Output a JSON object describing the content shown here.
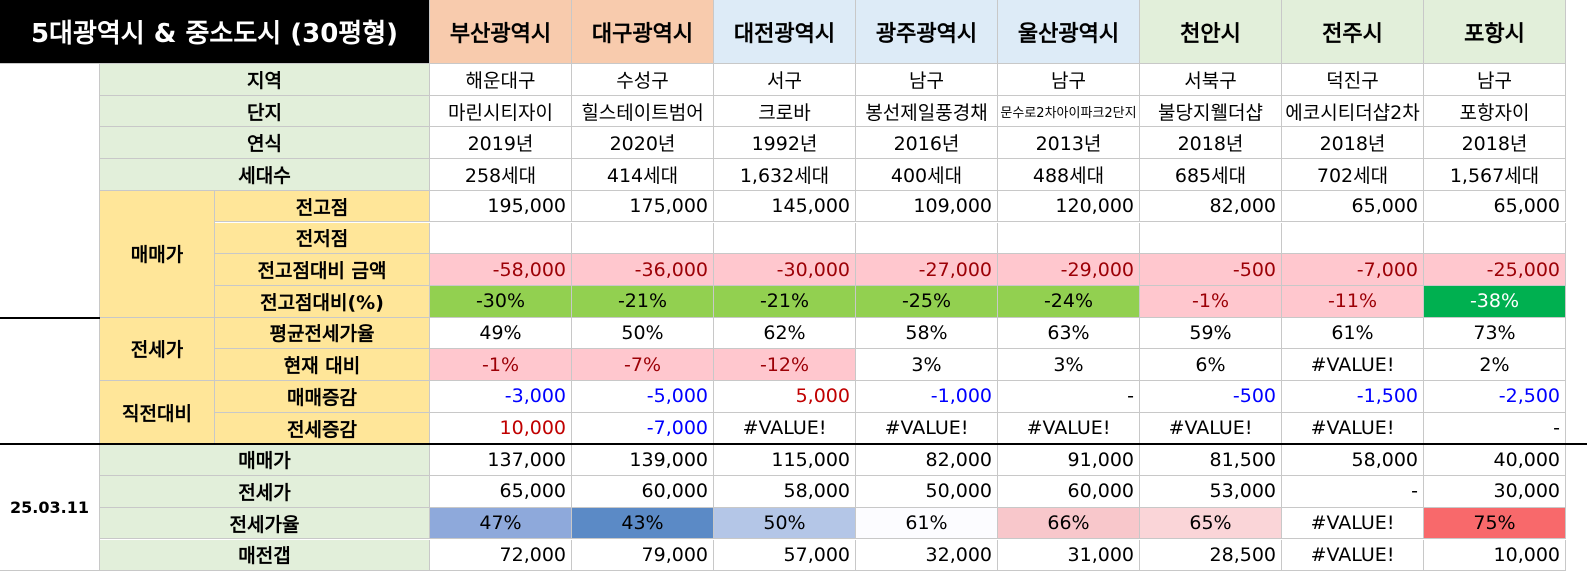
{
  "header": {
    "title": "5대광역시 & 중소도시 (30평형)",
    "cities": [
      "부산광역시",
      "대구광역시",
      "대전광역시",
      "광주광역시",
      "울산광역시",
      "천안시",
      "전주시",
      "포항시"
    ]
  },
  "groups": [
    "매매가",
    "전세가",
    "직전대비"
  ],
  "date": "25.03.11",
  "rows": [
    {
      "label": "지역",
      "values": [
        "해운대구",
        "수성구",
        "서구",
        "남구",
        "남구",
        "서북구",
        "덕진구",
        "남구"
      ]
    },
    {
      "label": "단지",
      "values": [
        "마린시티자이",
        "힐스테이트범어",
        "크로바",
        "봉선제일풍경채",
        "문수로2차아이파크2단지",
        "불당지웰더샵",
        "에코시티더샵2차",
        "포항자이"
      ]
    },
    {
      "label": "연식",
      "values": [
        "2019년",
        "2020년",
        "1992년",
        "2016년",
        "2013년",
        "2018년",
        "2018년",
        "2018년"
      ]
    },
    {
      "label": "세대수",
      "values": [
        "258세대",
        "414세대",
        "1,632세대",
        "400세대",
        "488세대",
        "685세대",
        "702세대",
        "1,567세대"
      ]
    },
    {
      "label": "전고점",
      "values": [
        "195,000",
        "175,000",
        "145,000",
        "109,000",
        "120,000",
        "82,000",
        "65,000",
        "65,000"
      ]
    },
    {
      "label": "전저점",
      "values": [
        null,
        null,
        null,
        null,
        null,
        null,
        null,
        null
      ]
    },
    {
      "label": "전고점대비 금액",
      "values": [
        "-58,000",
        "-36,000",
        "-30,000",
        "-27,000",
        "-29,000",
        "-500",
        "-7,000",
        "-25,000"
      ]
    },
    {
      "label": "전고점대비(%)",
      "values": [
        "-30%",
        "-21%",
        "-21%",
        "-25%",
        "-24%",
        "-1%",
        "-11%",
        "-38%"
      ]
    },
    {
      "label": "평균전세가율",
      "values": [
        "49%",
        "50%",
        "62%",
        "58%",
        "63%",
        "59%",
        "61%",
        "73%"
      ]
    },
    {
      "label": "현재 대비",
      "values": [
        "-1%",
        "-7%",
        "-12%",
        "3%",
        "3%",
        "6%",
        "#VALUE!",
        "2%"
      ]
    },
    {
      "label": "매매증감",
      "values": [
        "-3,000",
        "-5,000",
        "5,000",
        "-1,000",
        "-",
        "-500",
        "-1,500",
        "-2,500"
      ]
    },
    {
      "label": "전세증감",
      "values": [
        "10,000",
        "-7,000",
        "#VALUE!",
        "#VALUE!",
        "#VALUE!",
        "#VALUE!",
        "#VALUE!",
        "-"
      ]
    },
    {
      "label": "매매가",
      "values": [
        "137,000",
        "139,000",
        "115,000",
        "82,000",
        "91,000",
        "81,500",
        "58,000",
        "40,000"
      ]
    },
    {
      "label": "전세가",
      "values": [
        "65,000",
        "60,000",
        "58,000",
        "50,000",
        "60,000",
        "53,000",
        "-",
        "30,000"
      ]
    },
    {
      "label": "전세가율",
      "values": [
        "47%",
        "43%",
        "50%",
        "61%",
        "66%",
        "65%",
        "#VALUE!",
        "75%"
      ]
    },
    {
      "label": "매전갭",
      "values": [
        "72,000",
        "79,000",
        "57,000",
        "32,000",
        "31,000",
        "28,500",
        "#VALUE!",
        "10,000"
      ]
    }
  ]
}
